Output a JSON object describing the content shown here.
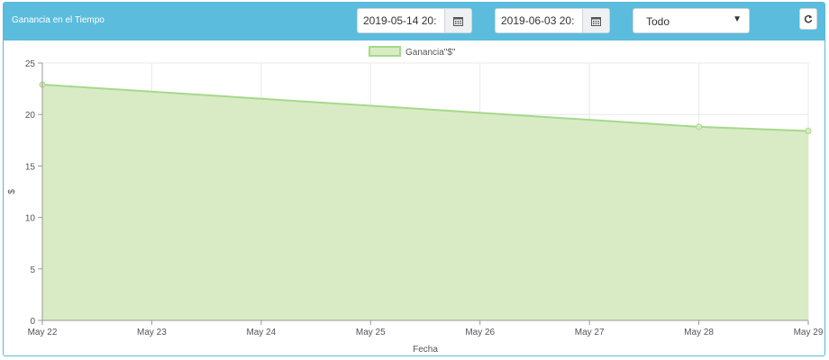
{
  "header": {
    "title": "Ganancia en el Tiempo",
    "date_from": "2019-05-14 20:",
    "date_to": "2019-06-03 20:",
    "filter_selected": "Todo"
  },
  "icons": {
    "calendar": "calendar-icon",
    "dropdown": "caret-down-icon",
    "refresh": "refresh-icon"
  },
  "chart_data": {
    "type": "area",
    "xlabel": "Fecha",
    "ylabel": "$",
    "ylim": [
      0,
      25
    ],
    "yticks": [
      "0",
      "5",
      "10",
      "15",
      "20",
      "25"
    ],
    "categories": [
      "May 22",
      "May 23",
      "May 24",
      "May 25",
      "May 26",
      "May 27",
      "May 28",
      "May 29"
    ],
    "grid": true,
    "legend_position": "top-center",
    "series": [
      {
        "name": "Ganancia\"$\"",
        "color": "#a5d98a",
        "fill": "#d9ebc4",
        "points": [
          {
            "x": "May 22",
            "y": 22.9
          },
          {
            "x": "May 28",
            "y": 18.8
          },
          {
            "x": "May 29",
            "y": 18.4
          }
        ]
      }
    ]
  }
}
